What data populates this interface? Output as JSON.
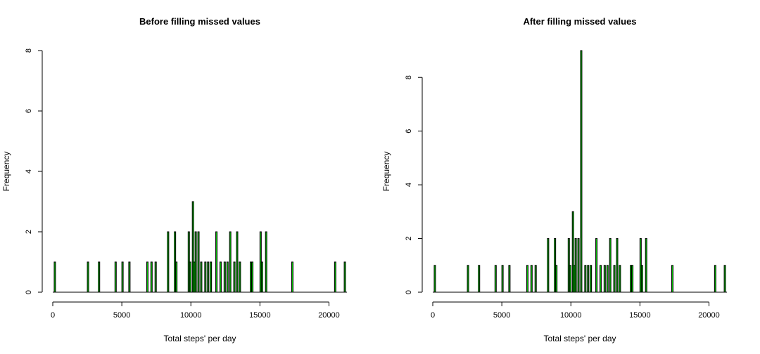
{
  "chart_data": [
    {
      "type": "bar",
      "title": "Before filling missed values",
      "xlabel": "Total steps' per day",
      "ylabel": "Frequency",
      "xlim": [
        0,
        21300
      ],
      "ylim": [
        0,
        8
      ],
      "xticks": [
        "0",
        "5000",
        "10000",
        "15000",
        "20000"
      ],
      "yticks": [
        "0",
        "2",
        "4",
        "6",
        "8"
      ],
      "bin_width": 100,
      "bar_color": "#00cc00",
      "bars": [
        {
          "x": 100,
          "count": 1
        },
        {
          "x": 2500,
          "count": 1
        },
        {
          "x": 3300,
          "count": 1
        },
        {
          "x": 4500,
          "count": 1
        },
        {
          "x": 5000,
          "count": 1
        },
        {
          "x": 5500,
          "count": 1
        },
        {
          "x": 6800,
          "count": 1
        },
        {
          "x": 7100,
          "count": 1
        },
        {
          "x": 7400,
          "count": 1
        },
        {
          "x": 8300,
          "count": 2
        },
        {
          "x": 8800,
          "count": 2
        },
        {
          "x": 8900,
          "count": 1
        },
        {
          "x": 9800,
          "count": 2
        },
        {
          "x": 9900,
          "count": 1
        },
        {
          "x": 10100,
          "count": 3
        },
        {
          "x": 10200,
          "count": 1
        },
        {
          "x": 10300,
          "count": 2
        },
        {
          "x": 10500,
          "count": 2
        },
        {
          "x": 10700,
          "count": 1
        },
        {
          "x": 11000,
          "count": 1
        },
        {
          "x": 11200,
          "count": 1
        },
        {
          "x": 11400,
          "count": 1
        },
        {
          "x": 11800,
          "count": 2
        },
        {
          "x": 12100,
          "count": 1
        },
        {
          "x": 12400,
          "count": 1
        },
        {
          "x": 12600,
          "count": 1
        },
        {
          "x": 12800,
          "count": 2
        },
        {
          "x": 13100,
          "count": 1
        },
        {
          "x": 13300,
          "count": 2
        },
        {
          "x": 13500,
          "count": 1
        },
        {
          "x": 14300,
          "count": 1
        },
        {
          "x": 14400,
          "count": 1
        },
        {
          "x": 15000,
          "count": 2
        },
        {
          "x": 15100,
          "count": 1
        },
        {
          "x": 15400,
          "count": 2
        },
        {
          "x": 17300,
          "count": 1
        },
        {
          "x": 20400,
          "count": 1
        },
        {
          "x": 21100,
          "count": 1
        }
      ]
    },
    {
      "type": "bar",
      "title": "After filling missed values",
      "xlabel": "Total steps' per day",
      "ylabel": "Frequency",
      "xlim": [
        0,
        21300
      ],
      "ylim": [
        0,
        9
      ],
      "xticks": [
        "0",
        "5000",
        "10000",
        "15000",
        "20000"
      ],
      "yticks": [
        "0",
        "2",
        "4",
        "6",
        "8"
      ],
      "bin_width": 100,
      "bar_color": "#00cc00",
      "bars": [
        {
          "x": 100,
          "count": 1
        },
        {
          "x": 2500,
          "count": 1
        },
        {
          "x": 3300,
          "count": 1
        },
        {
          "x": 4500,
          "count": 1
        },
        {
          "x": 5000,
          "count": 1
        },
        {
          "x": 5500,
          "count": 1
        },
        {
          "x": 6800,
          "count": 1
        },
        {
          "x": 7100,
          "count": 1
        },
        {
          "x": 7400,
          "count": 1
        },
        {
          "x": 8300,
          "count": 2
        },
        {
          "x": 8800,
          "count": 2
        },
        {
          "x": 8900,
          "count": 1
        },
        {
          "x": 9800,
          "count": 2
        },
        {
          "x": 9900,
          "count": 1
        },
        {
          "x": 10100,
          "count": 3
        },
        {
          "x": 10200,
          "count": 1
        },
        {
          "x": 10300,
          "count": 2
        },
        {
          "x": 10500,
          "count": 2
        },
        {
          "x": 10700,
          "count": 9
        },
        {
          "x": 11000,
          "count": 1
        },
        {
          "x": 11200,
          "count": 1
        },
        {
          "x": 11400,
          "count": 1
        },
        {
          "x": 11800,
          "count": 2
        },
        {
          "x": 12100,
          "count": 1
        },
        {
          "x": 12400,
          "count": 1
        },
        {
          "x": 12600,
          "count": 1
        },
        {
          "x": 12800,
          "count": 2
        },
        {
          "x": 13100,
          "count": 1
        },
        {
          "x": 13300,
          "count": 2
        },
        {
          "x": 13500,
          "count": 1
        },
        {
          "x": 14300,
          "count": 1
        },
        {
          "x": 14400,
          "count": 1
        },
        {
          "x": 15000,
          "count": 2
        },
        {
          "x": 15100,
          "count": 1
        },
        {
          "x": 15400,
          "count": 2
        },
        {
          "x": 17300,
          "count": 1
        },
        {
          "x": 20400,
          "count": 1
        },
        {
          "x": 21100,
          "count": 1
        }
      ]
    }
  ]
}
